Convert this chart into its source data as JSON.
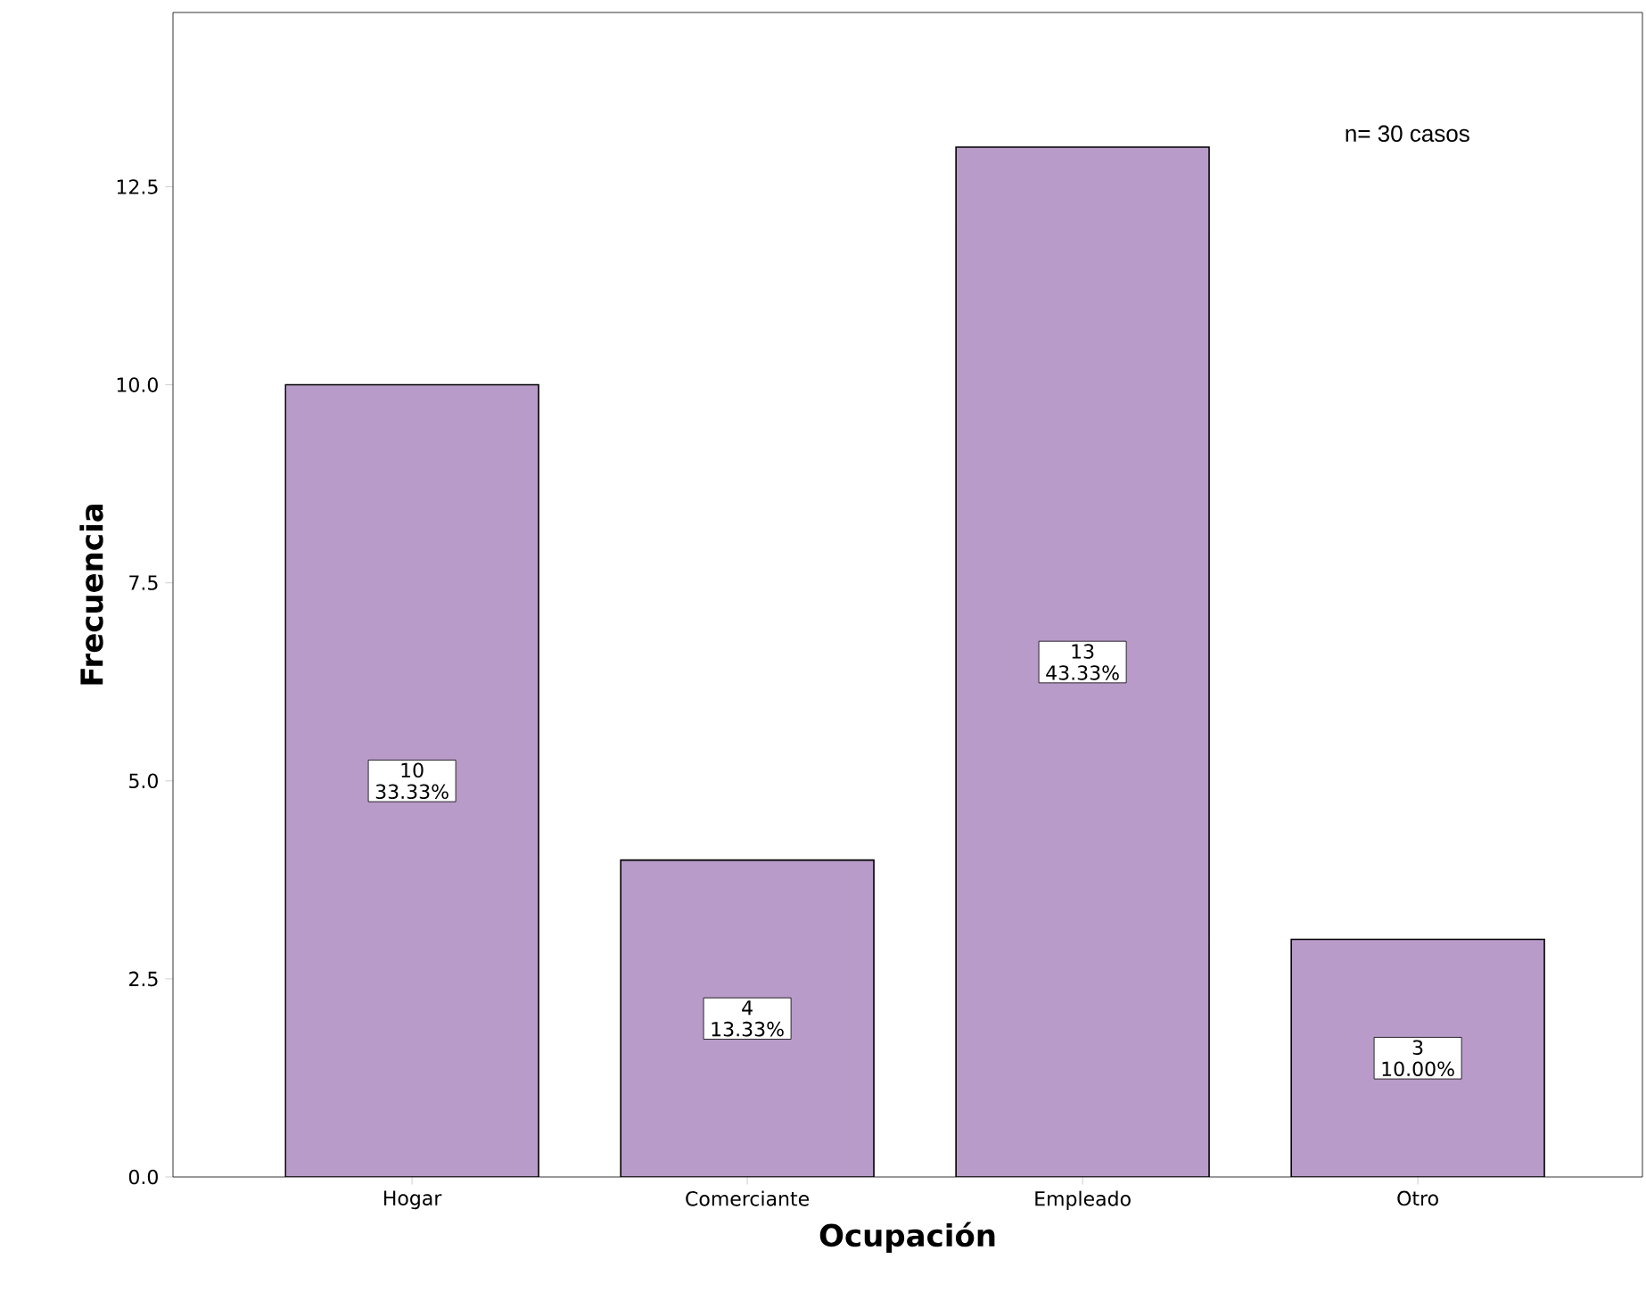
{
  "chart_data": {
    "type": "bar",
    "xlabel": "Ocupación",
    "ylabel": "Frecuencia",
    "categories": [
      "Hogar",
      "Comerciante",
      "Empleado",
      "Otro"
    ],
    "values": [
      10,
      4,
      13,
      3
    ],
    "value_labels": [
      "10 33.33%",
      "4 13.33%",
      "13 43.33%",
      "3 10.00%"
    ],
    "color": "#b89bc9",
    "ylim": [
      0,
      14.7
    ],
    "yticks": [
      {
        "value": 0,
        "label": "0.0"
      },
      {
        "value": 2.5,
        "label": "2.5"
      },
      {
        "value": 5,
        "label": "5.0"
      },
      {
        "value": 7.5,
        "label": "7.5"
      },
      {
        "value": 10,
        "label": "10.0"
      },
      {
        "value": 12.5,
        "label": "12.5"
      }
    ],
    "grid": false,
    "annotations": [
      "n= 30 casos"
    ]
  }
}
